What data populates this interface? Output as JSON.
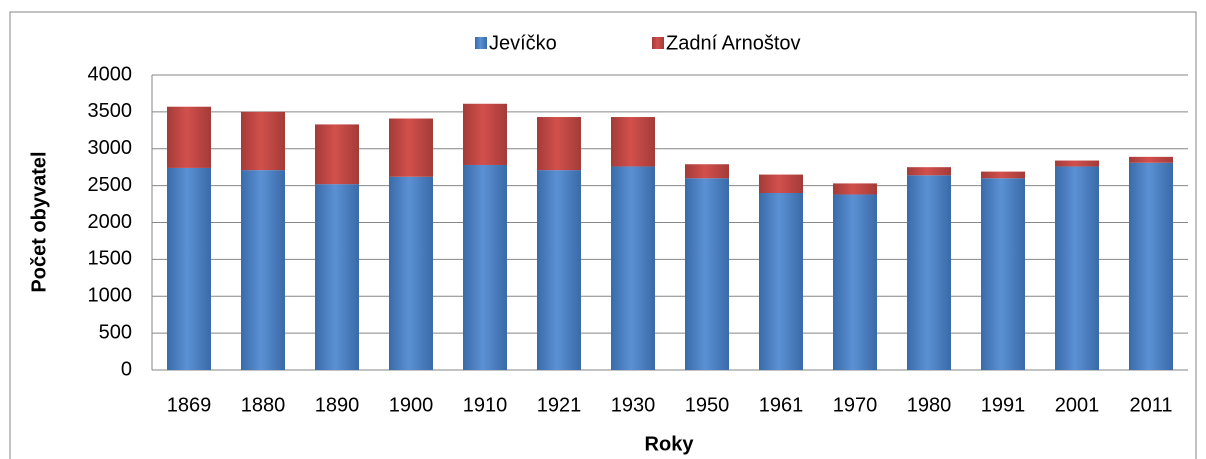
{
  "chart_data": {
    "type": "stacked_bar",
    "categories": [
      "1869",
      "1880",
      "1890",
      "1900",
      "1910",
      "1921",
      "1930",
      "1950",
      "1961",
      "1970",
      "1980",
      "1991",
      "2001",
      "2011"
    ],
    "series": [
      {
        "name": "Jevíčko",
        "color": "#4a7ebb",
        "values": [
          2740,
          2710,
          2520,
          2620,
          2780,
          2710,
          2760,
          2600,
          2400,
          2380,
          2640,
          2600,
          2760,
          2810
        ]
      },
      {
        "name": "Zadní Arnoštov",
        "color": "#be4b48",
        "values": [
          830,
          790,
          810,
          790,
          830,
          720,
          670,
          190,
          250,
          150,
          110,
          90,
          80,
          80
        ]
      }
    ],
    "ylim": [
      0,
      4000
    ],
    "yticks": [
      0,
      500,
      1000,
      1500,
      2000,
      2500,
      3000,
      3500,
      4000
    ],
    "grid": true,
    "y_label": "Počet obyvatel",
    "x_label": "Roky",
    "legend": "top"
  }
}
